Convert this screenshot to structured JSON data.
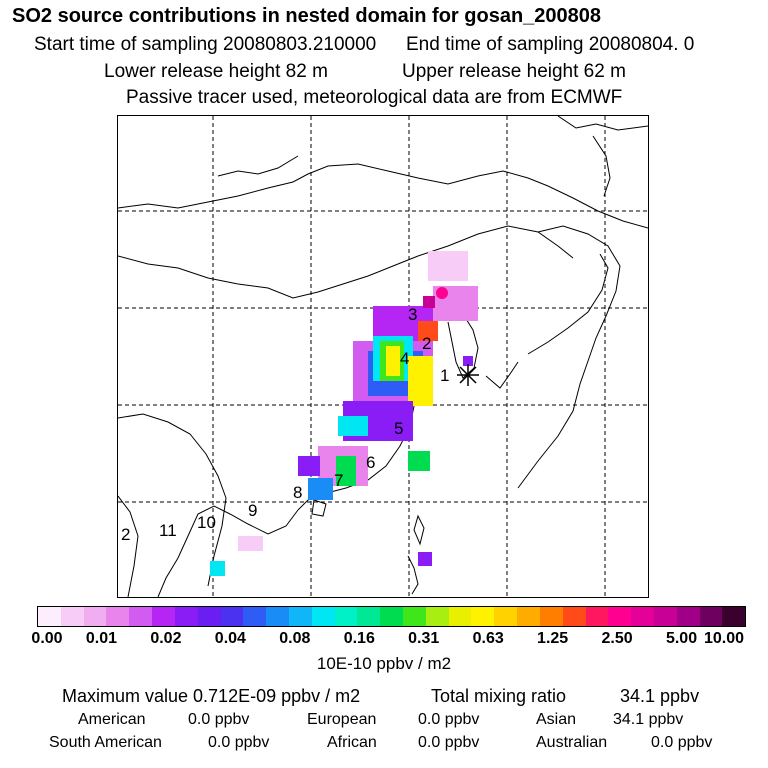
{
  "header": {
    "title": "SO2 source contributions in nested domain for gosan_200808",
    "start": "Start time of sampling 20080803.210000",
    "end": "End time of sampling 20080804.     0",
    "lower": "Lower release height   82 m",
    "upper": "Upper release height   62 m",
    "tracer": "Passive tracer used, meteorological data are from ECMWF"
  },
  "map": {
    "station_marker": "asterisk-icon",
    "site_labels": [
      "1",
      "2",
      "3",
      "4",
      "5",
      "6",
      "7",
      "8",
      "9",
      "10",
      "11",
      "2"
    ]
  },
  "colorbar": {
    "colors": [
      "#fdeefd",
      "#f7ccf7",
      "#f0aef0",
      "#e884ec",
      "#d35cf0",
      "#b526f5",
      "#8a1cf6",
      "#6a1ef2",
      "#4a32f0",
      "#2e5cf4",
      "#1a8cf5",
      "#10b6f8",
      "#00e6f2",
      "#00f0c8",
      "#00e896",
      "#00dc50",
      "#3ee61a",
      "#a8ee10",
      "#e8f000",
      "#fff200",
      "#ffd200",
      "#ffac00",
      "#ff7e00",
      "#ff4a1a",
      "#ff1860",
      "#ff0090",
      "#e6009a",
      "#c80096",
      "#a00088",
      "#6e0060",
      "#3a002e"
    ],
    "labels": [
      "0.00",
      "0.01",
      "0.02",
      "0.04",
      "0.08",
      "0.16",
      "0.31",
      "0.63",
      "1.25",
      "2.50",
      "5.00",
      "10.00"
    ],
    "units": "10E-10 ppbv / m2"
  },
  "summary": {
    "max_label": "Maximum value  0.712E-09 ppbv / m2",
    "total_label": "Total mixing ratio",
    "total_value": "34.1 ppbv",
    "regions": [
      {
        "name": "American",
        "value": "0.0 ppbv"
      },
      {
        "name": "European",
        "value": "0.0 ppbv"
      },
      {
        "name": "Asian",
        "value": "34.1 ppbv"
      },
      {
        "name": "South American",
        "value": "0.0 ppbv"
      },
      {
        "name": "African",
        "value": "0.0 ppbv"
      },
      {
        "name": "Australian",
        "value": "0.0 ppbv"
      }
    ]
  }
}
